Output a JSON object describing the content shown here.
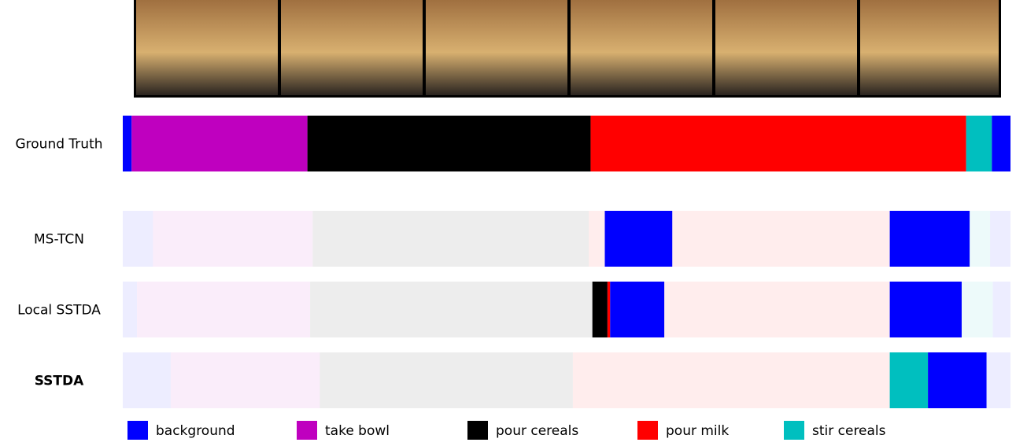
{
  "chart_data": {
    "type": "segmentation",
    "xlim": [
      0,
      100
    ],
    "classes": [
      {
        "name": "background",
        "color": "#0000ff"
      },
      {
        "name": "take bowl",
        "color": "#bf00bf"
      },
      {
        "name": "pour cereals",
        "color": "#000000"
      },
      {
        "name": "pour milk",
        "color": "#ff0000"
      },
      {
        "name": "stir cereals",
        "color": "#00bfbf"
      }
    ],
    "rows": [
      {
        "name": "Ground Truth",
        "segments": [
          {
            "class": 0,
            "start": 0,
            "end": 1.0,
            "faded": false
          },
          {
            "class": 1,
            "start": 1.0,
            "end": 20.8,
            "faded": false
          },
          {
            "class": 2,
            "start": 20.8,
            "end": 52.7,
            "faded": false
          },
          {
            "class": 3,
            "start": 52.7,
            "end": 95.0,
            "faded": false
          },
          {
            "class": 4,
            "start": 95.0,
            "end": 97.9,
            "faded": false
          },
          {
            "class": 0,
            "start": 97.9,
            "end": 100,
            "faded": false
          }
        ]
      },
      {
        "name": "MS-TCN",
        "segments": [
          {
            "class": 0,
            "start": 0,
            "end": 3.4,
            "faded": true
          },
          {
            "class": 1,
            "start": 3.4,
            "end": 21.4,
            "faded": true
          },
          {
            "class": 2,
            "start": 21.4,
            "end": 52.5,
            "faded": true
          },
          {
            "class": 3,
            "start": 52.5,
            "end": 54.3,
            "faded": true
          },
          {
            "class": 0,
            "start": 54.3,
            "end": 61.9,
            "faded": false
          },
          {
            "class": 3,
            "start": 61.9,
            "end": 86.4,
            "faded": true
          },
          {
            "class": 0,
            "start": 86.4,
            "end": 95.4,
            "faded": false
          },
          {
            "class": 4,
            "start": 95.4,
            "end": 97.7,
            "faded": true
          },
          {
            "class": 0,
            "start": 97.7,
            "end": 100,
            "faded": true
          }
        ]
      },
      {
        "name": "Local SSTDA",
        "segments": [
          {
            "class": 0,
            "start": 0,
            "end": 1.6,
            "faded": true
          },
          {
            "class": 1,
            "start": 1.6,
            "end": 21.1,
            "faded": true
          },
          {
            "class": 2,
            "start": 21.1,
            "end": 52.9,
            "faded": true
          },
          {
            "class": 2,
            "start": 52.9,
            "end": 54.6,
            "faded": false
          },
          {
            "class": 3,
            "start": 54.6,
            "end": 54.9,
            "faded": false
          },
          {
            "class": 0,
            "start": 54.9,
            "end": 61.0,
            "faded": false
          },
          {
            "class": 3,
            "start": 61.0,
            "end": 86.4,
            "faded": true
          },
          {
            "class": 0,
            "start": 86.4,
            "end": 94.5,
            "faded": false
          },
          {
            "class": 4,
            "start": 94.5,
            "end": 98.0,
            "faded": true
          },
          {
            "class": 0,
            "start": 98.0,
            "end": 100,
            "faded": true
          }
        ]
      },
      {
        "name": "SSTDA",
        "bold": true,
        "segments": [
          {
            "class": 0,
            "start": 0,
            "end": 5.4,
            "faded": true
          },
          {
            "class": 1,
            "start": 5.4,
            "end": 22.2,
            "faded": true
          },
          {
            "class": 2,
            "start": 22.2,
            "end": 50.7,
            "faded": true
          },
          {
            "class": 3,
            "start": 50.7,
            "end": 86.4,
            "faded": true
          },
          {
            "class": 4,
            "start": 86.4,
            "end": 90.7,
            "faded": false
          },
          {
            "class": 0,
            "start": 90.7,
            "end": 97.3,
            "faded": false
          },
          {
            "class": 0,
            "start": 97.3,
            "end": 100,
            "faded": true
          }
        ]
      }
    ]
  }
}
